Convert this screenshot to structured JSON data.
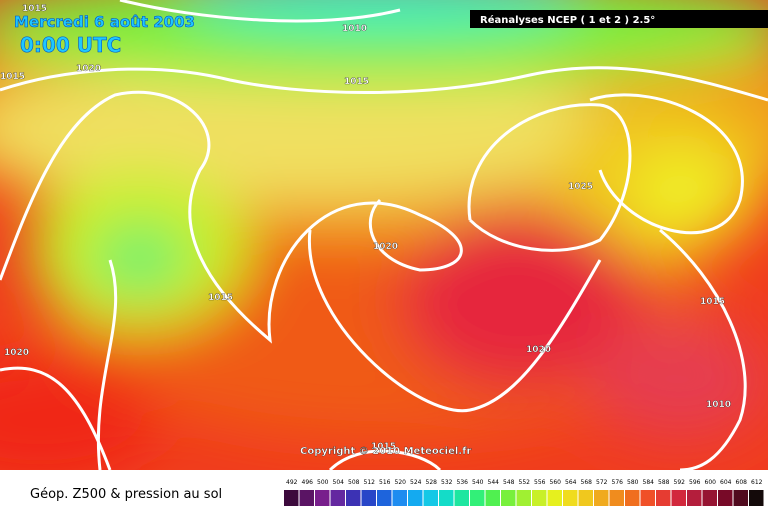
{
  "header": {
    "date": "Mercredi 6 août 2003",
    "time": "0:00 UTC",
    "source": "Réanalyses NCEP ( 1 et 2 ) 2.5°"
  },
  "isobars": [
    {
      "label": "1015"
    },
    {
      "label": "1010"
    },
    {
      "label": "1015"
    },
    {
      "label": "1020"
    },
    {
      "label": "1015"
    },
    {
      "label": "1025"
    },
    {
      "label": "1020"
    },
    {
      "label": "1015"
    },
    {
      "label": "1020"
    },
    {
      "label": "1020"
    },
    {
      "label": "1015"
    },
    {
      "label": "1010"
    },
    {
      "label": "1015"
    }
  ],
  "copyright": "Copyright © 2010 Meteociel.fr",
  "footer": {
    "caption": "Géop. Z500 & pression au sol",
    "scale": {
      "labels": [
        492,
        496,
        500,
        504,
        508,
        512,
        516,
        520,
        524,
        528,
        532,
        536,
        540,
        544,
        548,
        552,
        556,
        560,
        564,
        568,
        572,
        576,
        580,
        584,
        588,
        592,
        596,
        600,
        604,
        608,
        612
      ],
      "colors": [
        "#3c0a3c",
        "#5a1464",
        "#781e8c",
        "#6428a0",
        "#3c32b4",
        "#2846c8",
        "#1e64dc",
        "#1e8cf0",
        "#14aaf0",
        "#14c8e6",
        "#14dcc8",
        "#1ee6a0",
        "#32f078",
        "#50f050",
        "#78f03c",
        "#a0f032",
        "#c8f028",
        "#e6f01e",
        "#f0dc1e",
        "#f0c81e",
        "#f0aa1e",
        "#f08c1e",
        "#f06e1e",
        "#f05028",
        "#e63c32",
        "#d2283c",
        "#b41e3c",
        "#961432",
        "#780a28",
        "#500a1e",
        "#140a0a"
      ]
    }
  }
}
